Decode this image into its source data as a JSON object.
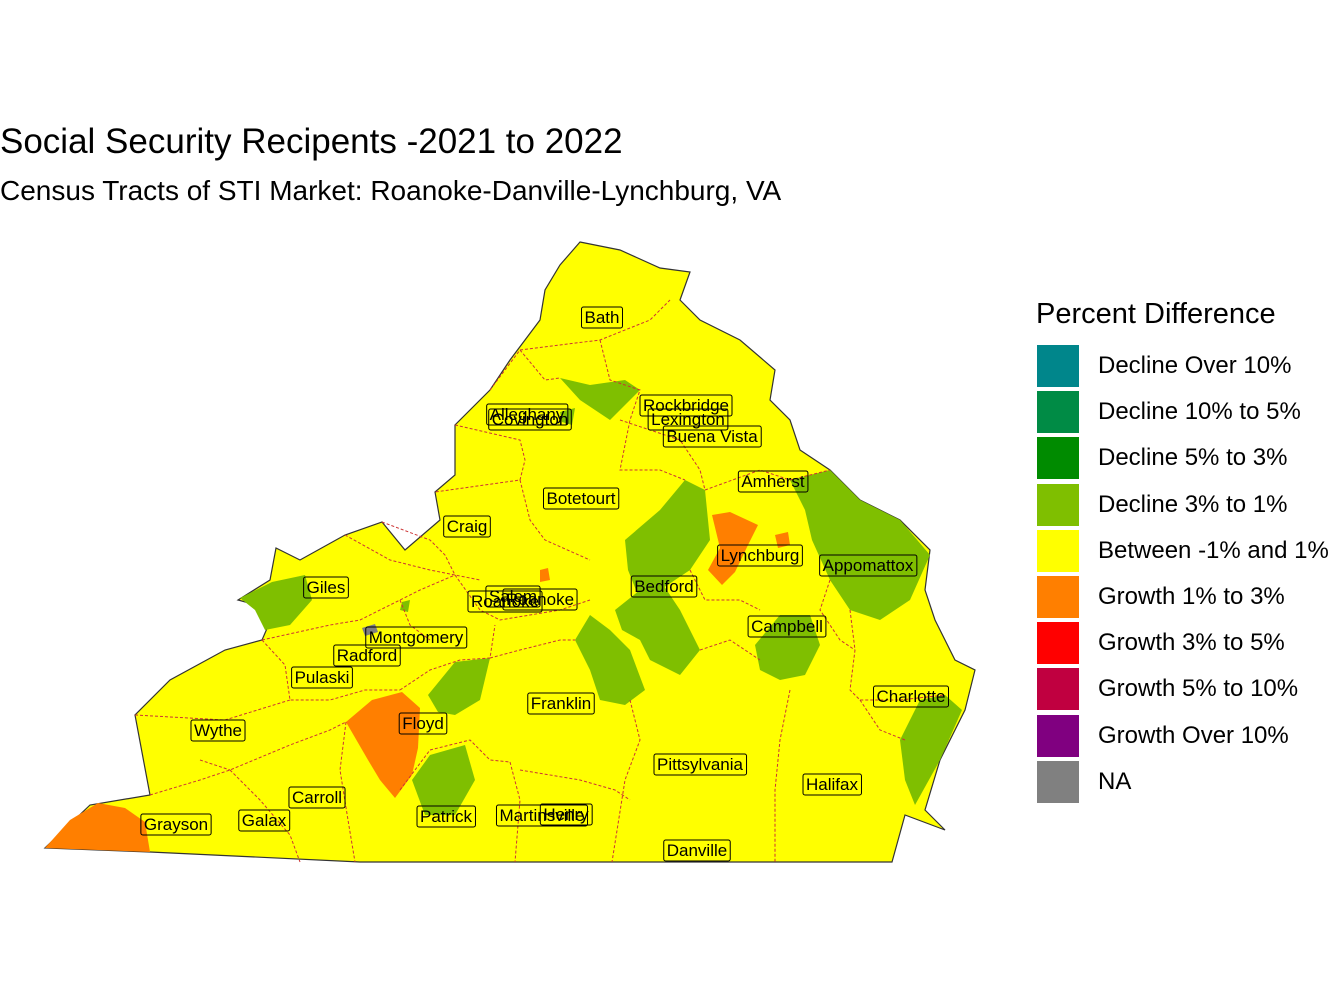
{
  "title": "Social Security Recipents -2021 to 2022",
  "subtitle": "Census Tracts of STI Market: Roanoke-Danville-Lynchburg, VA",
  "legend": {
    "title": "Percent Difference",
    "items": [
      {
        "label": "Decline Over 10%",
        "color": "#00868B"
      },
      {
        "label": "Decline 10% to 5%",
        "color": "#008B45"
      },
      {
        "label": "Decline 5% to 3%",
        "color": "#008B00"
      },
      {
        "label": "Decline 3% to 1%",
        "color": "#7FBF00"
      },
      {
        "label": "Between -1% and 1%",
        "color": "#FFFF00"
      },
      {
        "label": "Growth 1% to 3%",
        "color": "#FF7F00"
      },
      {
        "label": "Growth 3% to 5%",
        "color": "#FF0000"
      },
      {
        "label": "Growth 5% to 10%",
        "color": "#C00040"
      },
      {
        "label": "Growth Over 10%",
        "color": "#800080"
      },
      {
        "label": "NA",
        "color": "#808080"
      }
    ]
  },
  "counties": [
    {
      "name": "Bath",
      "category": "Between -1% and 1%"
    },
    {
      "name": "Alleghany",
      "category": "Between -1% and 1%"
    },
    {
      "name": "Covington",
      "category": "Between -1% and 1%"
    },
    {
      "name": "Rockbridge",
      "category": "Between -1% and 1%"
    },
    {
      "name": "Lexington",
      "category": "Between -1% and 1%"
    },
    {
      "name": "Buena Vista",
      "category": "Between -1% and 1%"
    },
    {
      "name": "Amherst",
      "category": "Between -1% and 1%"
    },
    {
      "name": "Botetourt",
      "category": "Between -1% and 1%"
    },
    {
      "name": "Craig",
      "category": "Between -1% and 1%"
    },
    {
      "name": "Lynchburg",
      "category": "Growth 1% to 3%"
    },
    {
      "name": "Appomattox",
      "category": "Decline 3% to 1%"
    },
    {
      "name": "Giles",
      "category": "Decline 3% to 1%"
    },
    {
      "name": "Salem",
      "category": "Between -1% and 1%"
    },
    {
      "name": "Roanoke",
      "category": "Between -1% and 1%"
    },
    {
      "name": "Roanoke",
      "category": "Between -1% and 1%"
    },
    {
      "name": "Bedford",
      "category": "Decline 3% to 1%"
    },
    {
      "name": "Montgomery",
      "category": "Between -1% and 1%"
    },
    {
      "name": "Radford",
      "category": "Between -1% and 1%"
    },
    {
      "name": "Campbell",
      "category": "Decline 3% to 1%"
    },
    {
      "name": "Pulaski",
      "category": "Between -1% and 1%"
    },
    {
      "name": "Charlotte",
      "category": "Between -1% and 1%"
    },
    {
      "name": "Franklin",
      "category": "Between -1% and 1%"
    },
    {
      "name": "Wythe",
      "category": "Between -1% and 1%"
    },
    {
      "name": "Floyd",
      "category": "Growth 1% to 3%"
    },
    {
      "name": "Pittsylvania",
      "category": "Between -1% and 1%"
    },
    {
      "name": "Halifax",
      "category": "Between -1% and 1%"
    },
    {
      "name": "Carroll",
      "category": "Between -1% and 1%"
    },
    {
      "name": "Galax",
      "category": "Between -1% and 1%"
    },
    {
      "name": "Grayson",
      "category": "Between -1% and 1%"
    },
    {
      "name": "Patrick",
      "category": "Between -1% and 1%"
    },
    {
      "name": "Martinsville",
      "category": "Between -1% and 1%"
    },
    {
      "name": "Henry",
      "category": "Between -1% and 1%"
    },
    {
      "name": "Danville",
      "category": "Between -1% and 1%"
    }
  ]
}
